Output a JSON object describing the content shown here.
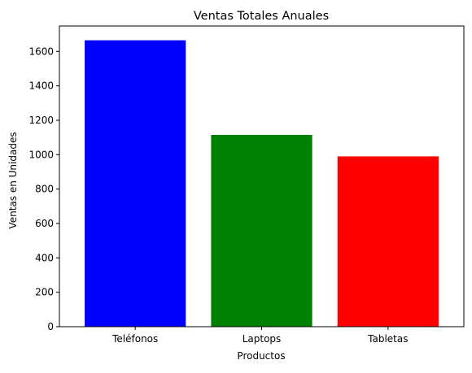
{
  "chart_data": {
    "type": "bar",
    "title": "Ventas Totales Anuales",
    "xlabel": "Productos",
    "ylabel": "Ventas en Unidades",
    "categories": [
      "Teléfonos",
      "Laptops",
      "Tabletas"
    ],
    "values": [
      1665,
      1115,
      990
    ],
    "colors": [
      "#0000ff",
      "#008000",
      "#ff0000"
    ],
    "ylim": [
      0,
      1748
    ],
    "yticks": [
      0,
      200,
      400,
      600,
      800,
      1000,
      1200,
      1400,
      1600
    ],
    "grid": false,
    "legend": "none"
  }
}
